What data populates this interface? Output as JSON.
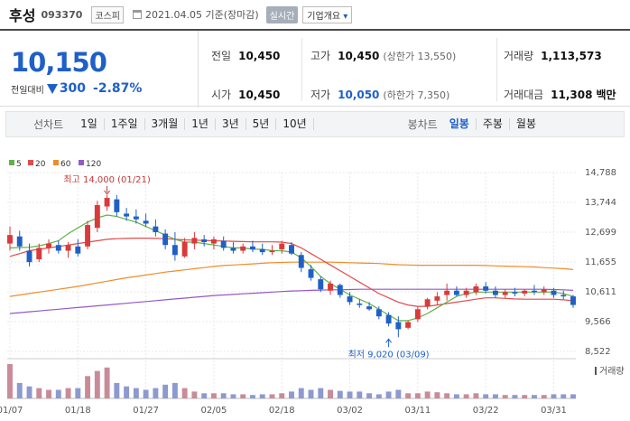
{
  "header": {
    "name": "후성",
    "code": "093370",
    "market": "코스피",
    "date_text": "2021.04.05 기준(장마감)",
    "live_label": "실시간",
    "company_info_label": "기업개요",
    "company_info_arrow": "▾"
  },
  "price": {
    "current": "10,150",
    "change_label": "전일대비",
    "change_amount": "300",
    "change_pct": "-2.87%"
  },
  "stats": {
    "prev_label": "전일",
    "prev": "10,450",
    "high_label": "고가",
    "high": "10,450",
    "high_sub": "(상한가 13,550)",
    "vol_label": "거래량",
    "vol": "1,113,573",
    "open_label": "시가",
    "open": "10,450",
    "low_label": "저가",
    "low": "10,050",
    "low_sub": "(하한가 7,350)",
    "amt_label": "거래대금",
    "amt": "11,308",
    "amt_unit": "백만"
  },
  "toolbar": {
    "line_label": "선차트",
    "line_items": [
      "1일",
      "1주일",
      "3개월",
      "1년",
      "3년",
      "5년",
      "10년"
    ],
    "candle_label": "봉차트",
    "candle_items": [
      "일봉",
      "주봉",
      "월봉"
    ],
    "candle_selected": 0
  },
  "colors": {
    "up": "#d93a3a",
    "down": "#1f60c7",
    "ma5": "#62b04a",
    "ma20": "#e04b4b",
    "ma60": "#ef8c2a",
    "ma120": "#9359c8"
  },
  "chart_data": {
    "type": "candlestick",
    "ylim": [
      8522,
      14788
    ],
    "y_ticks": [
      "14,788",
      "13,744",
      "12,699",
      "11,655",
      "10,611",
      "9,566",
      "8,522"
    ],
    "x_tick_labels": [
      "01/07",
      "01/18",
      "01/27",
      "02/05",
      "02/18",
      "03/02",
      "03/11",
      "03/22",
      "03/31"
    ],
    "x_tick_index": [
      0,
      7,
      14,
      21,
      28,
      35,
      42,
      49,
      56
    ],
    "legend": [
      {
        "name": "5",
        "color": "#62b04a"
      },
      {
        "name": "20",
        "color": "#e04b4b"
      },
      {
        "name": "60",
        "color": "#ef8c2a"
      },
      {
        "name": "120",
        "color": "#9359c8"
      }
    ],
    "annotations": {
      "high_text": "최고 14,000 (01/21)",
      "high_index": 10,
      "high_value": 14000,
      "low_text": "최저 9,020 (03/09)",
      "low_index": 39,
      "low_value": 9020
    },
    "volume_label": "거래량",
    "candles": [
      {
        "o": 12300,
        "h": 12900,
        "l": 12050,
        "c": 12600
      },
      {
        "o": 12550,
        "h": 12750,
        "l": 12050,
        "c": 12200
      },
      {
        "o": 12050,
        "h": 12300,
        "l": 11500,
        "c": 11650
      },
      {
        "o": 11750,
        "h": 12300,
        "l": 11650,
        "c": 12150
      },
      {
        "o": 12150,
        "h": 12450,
        "l": 11950,
        "c": 12300
      },
      {
        "o": 12250,
        "h": 12400,
        "l": 11950,
        "c": 12050
      },
      {
        "o": 12050,
        "h": 12350,
        "l": 11800,
        "c": 12250
      },
      {
        "o": 12200,
        "h": 12450,
        "l": 11850,
        "c": 11950
      },
      {
        "o": 12200,
        "h": 13100,
        "l": 12100,
        "c": 12950
      },
      {
        "o": 12850,
        "h": 13800,
        "l": 12700,
        "c": 13650
      },
      {
        "o": 13600,
        "h": 14000,
        "l": 13450,
        "c": 13900
      },
      {
        "o": 13850,
        "h": 14000,
        "l": 13250,
        "c": 13400
      },
      {
        "o": 13350,
        "h": 13550,
        "l": 13100,
        "c": 13250
      },
      {
        "o": 13250,
        "h": 13500,
        "l": 13000,
        "c": 13150
      },
      {
        "o": 13100,
        "h": 13350,
        "l": 12900,
        "c": 13000
      },
      {
        "o": 12900,
        "h": 13150,
        "l": 12550,
        "c": 12700
      },
      {
        "o": 12650,
        "h": 12800,
        "l": 12100,
        "c": 12250
      },
      {
        "o": 12250,
        "h": 12700,
        "l": 11700,
        "c": 11900
      },
      {
        "o": 11850,
        "h": 12500,
        "l": 11800,
        "c": 12350
      },
      {
        "o": 12300,
        "h": 12700,
        "l": 12100,
        "c": 12500
      },
      {
        "o": 12450,
        "h": 12600,
        "l": 12200,
        "c": 12350
      },
      {
        "o": 12300,
        "h": 12550,
        "l": 12100,
        "c": 12450
      },
      {
        "o": 12400,
        "h": 12550,
        "l": 12050,
        "c": 12150
      },
      {
        "o": 12150,
        "h": 12350,
        "l": 11950,
        "c": 12050
      },
      {
        "o": 12050,
        "h": 12300,
        "l": 11950,
        "c": 12200
      },
      {
        "o": 12200,
        "h": 12400,
        "l": 12000,
        "c": 12100
      },
      {
        "o": 12100,
        "h": 12300,
        "l": 11900,
        "c": 12000
      },
      {
        "o": 12000,
        "h": 12250,
        "l": 11900,
        "c": 12050
      },
      {
        "o": 12100,
        "h": 12400,
        "l": 11950,
        "c": 12300
      },
      {
        "o": 12250,
        "h": 12350,
        "l": 11900,
        "c": 11950
      },
      {
        "o": 11900,
        "h": 12000,
        "l": 11300,
        "c": 11450
      },
      {
        "o": 11400,
        "h": 11550,
        "l": 11000,
        "c": 11100
      },
      {
        "o": 11050,
        "h": 11150,
        "l": 10600,
        "c": 10700
      },
      {
        "o": 10650,
        "h": 11000,
        "l": 10500,
        "c": 10900
      },
      {
        "o": 10850,
        "h": 10900,
        "l": 10400,
        "c": 10500
      },
      {
        "o": 10450,
        "h": 10600,
        "l": 10150,
        "c": 10250
      },
      {
        "o": 10200,
        "h": 10350,
        "l": 10050,
        "c": 10150
      },
      {
        "o": 10100,
        "h": 10250,
        "l": 9950,
        "c": 10000
      },
      {
        "o": 10000,
        "h": 10100,
        "l": 9650,
        "c": 9750
      },
      {
        "o": 9800,
        "h": 9900,
        "l": 9400,
        "c": 9500
      },
      {
        "o": 9550,
        "h": 9750,
        "l": 9020,
        "c": 9300
      },
      {
        "o": 9350,
        "h": 9600,
        "l": 9300,
        "c": 9550
      },
      {
        "o": 9650,
        "h": 10100,
        "l": 9550,
        "c": 10000
      },
      {
        "o": 10100,
        "h": 10400,
        "l": 10000,
        "c": 10350
      },
      {
        "o": 10300,
        "h": 10600,
        "l": 10150,
        "c": 10450
      },
      {
        "o": 10500,
        "h": 10900,
        "l": 10300,
        "c": 10650
      },
      {
        "o": 10650,
        "h": 10800,
        "l": 10450,
        "c": 10500
      },
      {
        "o": 10500,
        "h": 10750,
        "l": 10400,
        "c": 10650
      },
      {
        "o": 10600,
        "h": 10900,
        "l": 10500,
        "c": 10800
      },
      {
        "o": 10800,
        "h": 10950,
        "l": 10550,
        "c": 10650
      },
      {
        "o": 10650,
        "h": 10800,
        "l": 10400,
        "c": 10500
      },
      {
        "o": 10500,
        "h": 10700,
        "l": 10400,
        "c": 10600
      },
      {
        "o": 10600,
        "h": 10750,
        "l": 10450,
        "c": 10550
      },
      {
        "o": 10550,
        "h": 10700,
        "l": 10450,
        "c": 10650
      },
      {
        "o": 10650,
        "h": 10850,
        "l": 10500,
        "c": 10600
      },
      {
        "o": 10600,
        "h": 10800,
        "l": 10500,
        "c": 10700
      },
      {
        "o": 10650,
        "h": 10750,
        "l": 10400,
        "c": 10500
      },
      {
        "o": 10500,
        "h": 10650,
        "l": 10350,
        "c": 10450
      },
      {
        "o": 10450,
        "h": 10500,
        "l": 10050,
        "c": 10150
      }
    ],
    "volumes": [
      1.0,
      0.45,
      0.35,
      0.3,
      0.25,
      0.25,
      0.3,
      0.3,
      0.65,
      0.8,
      0.9,
      0.45,
      0.35,
      0.3,
      0.25,
      0.3,
      0.4,
      0.45,
      0.3,
      0.2,
      0.15,
      0.15,
      0.15,
      0.12,
      0.12,
      0.1,
      0.12,
      0.12,
      0.15,
      0.2,
      0.3,
      0.25,
      0.3,
      0.25,
      0.22,
      0.2,
      0.2,
      0.15,
      0.12,
      0.2,
      0.25,
      0.15,
      0.15,
      0.2,
      0.18,
      0.15,
      0.12,
      0.12,
      0.15,
      0.12,
      0.12,
      0.1,
      0.1,
      0.1,
      0.1,
      0.1,
      0.12,
      0.12,
      0.12
    ],
    "ma5": [
      12150,
      12160,
      12170,
      12220,
      12300,
      12400,
      12650,
      12850,
      13050,
      13200,
      13300,
      13250,
      13150,
      13050,
      12900,
      12750,
      12600,
      12450,
      12350,
      12350,
      12300,
      12250,
      12200,
      12150,
      12150,
      12100,
      12100,
      12050,
      12050,
      12000,
      11800,
      11500,
      11150,
      10900,
      10700,
      10500,
      10350,
      10200,
      10000,
      9800,
      9600,
      9600,
      9700,
      9850,
      10050,
      10250,
      10450,
      10550,
      10600,
      10600,
      10600,
      10600,
      10600,
      10600,
      10600,
      10600,
      10600,
      10550,
      10450
    ],
    "ma20": [
      11850,
      11950,
      12050,
      12100,
      12150,
      12200,
      12250,
      12300,
      12350,
      12400,
      12450,
      12470,
      12480,
      12490,
      12490,
      12480,
      12470,
      12450,
      12430,
      12420,
      12410,
      12400,
      12390,
      12380,
      12370,
      12360,
      12360,
      12360,
      12350,
      12300,
      12150,
      11950,
      11750,
      11550,
      11350,
      11150,
      10950,
      10750,
      10550,
      10400,
      10250,
      10150,
      10100,
      10100,
      10150,
      10200,
      10250,
      10300,
      10350,
      10400,
      10400,
      10380,
      10360,
      10350,
      10350,
      10350,
      10350,
      10330,
      10300
    ],
    "ma60": [
      10450,
      10500,
      10550,
      10600,
      10650,
      10700,
      10750,
      10800,
      10860,
      10920,
      10980,
      11040,
      11100,
      11150,
      11200,
      11250,
      11300,
      11340,
      11380,
      11420,
      11460,
      11500,
      11530,
      11550,
      11570,
      11590,
      11610,
      11630,
      11640,
      11650,
      11650,
      11650,
      11650,
      11650,
      11640,
      11630,
      11620,
      11610,
      11600,
      11580,
      11560,
      11550,
      11540,
      11540,
      11540,
      11540,
      11540,
      11540,
      11540,
      11530,
      11520,
      11510,
      11500,
      11490,
      11480,
      11460,
      11440,
      11420,
      11390
    ],
    "ma120": [
      9850,
      9880,
      9910,
      9940,
      9970,
      10000,
      10030,
      10060,
      10090,
      10120,
      10150,
      10180,
      10210,
      10240,
      10270,
      10300,
      10330,
      10360,
      10390,
      10420,
      10450,
      10480,
      10500,
      10520,
      10540,
      10560,
      10580,
      10600,
      10620,
      10640,
      10650,
      10660,
      10670,
      10680,
      10680,
      10690,
      10700,
      10700,
      10700,
      10700,
      10700,
      10700,
      10700,
      10700,
      10700,
      10700,
      10700,
      10700,
      10700,
      10700,
      10700,
      10700,
      10700,
      10700,
      10700,
      10700,
      10690,
      10680,
      10660
    ]
  }
}
